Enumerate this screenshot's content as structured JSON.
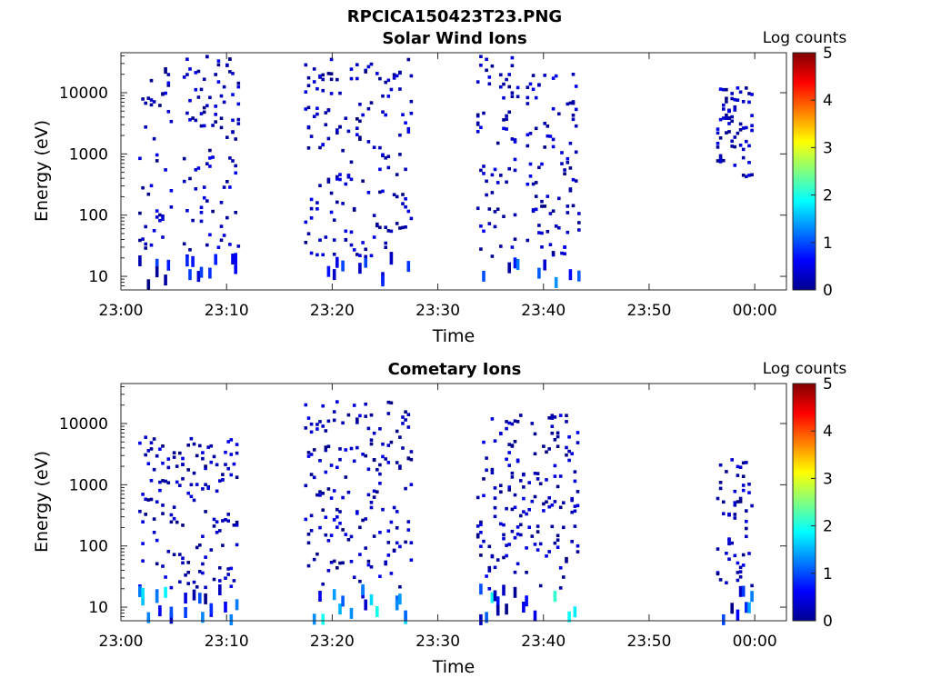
{
  "figure": {
    "title": "RPCICA150423T23.PNG"
  },
  "chart_data": [
    {
      "type": "heatmap",
      "title": "Solar Wind Ions",
      "xlabel": "Time",
      "ylabel": "Energy (eV)",
      "x_tick_labels": [
        "23:00",
        "23:10",
        "23:20",
        "23:30",
        "23:40",
        "23:50",
        "00:00"
      ],
      "x_ticks_min": [
        0,
        10,
        20,
        30,
        40,
        50,
        60
      ],
      "x_range_min": [
        0,
        63
      ],
      "y_scale": "log",
      "y_tick_labels": [
        "10",
        "100",
        "1000",
        "10000"
      ],
      "y_ticks": [
        10,
        100,
        1000,
        10000
      ],
      "y_range": [
        6,
        45000
      ],
      "colorbar": {
        "label": "Log counts",
        "range": [
          0,
          5
        ],
        "tick_labels": [
          "0",
          "1",
          "2",
          "3",
          "4",
          "5"
        ],
        "colormap": "jet"
      },
      "bursts": [
        {
          "t0": 1.8,
          "t1": 5.0,
          "emin": 6,
          "emax": 30000,
          "log_counts_max": 1.0
        },
        {
          "t0": 6.0,
          "t1": 11.2,
          "emin": 6,
          "emax": 40000,
          "log_counts_max": 1.0
        },
        {
          "t0": 17.5,
          "t1": 27.5,
          "emin": 6,
          "emax": 35000,
          "log_counts_max": 1.0
        },
        {
          "t0": 33.8,
          "t1": 37.8,
          "emin": 6,
          "emax": 40000,
          "log_counts_max": 1.5
        },
        {
          "t0": 38.5,
          "t1": 43.5,
          "emin": 6,
          "emax": 20000,
          "log_counts_max": 1.8
        },
        {
          "t0": 56.5,
          "t1": 59.8,
          "emin": 400,
          "emax": 12000,
          "log_counts_max": 0.6
        }
      ]
    },
    {
      "type": "heatmap",
      "title": "Cometary Ions",
      "xlabel": "Time",
      "ylabel": "Energy (eV)",
      "x_tick_labels": [
        "23:00",
        "23:10",
        "23:20",
        "23:30",
        "23:40",
        "23:50",
        "00:00"
      ],
      "x_ticks_min": [
        0,
        10,
        20,
        30,
        40,
        50,
        60
      ],
      "x_range_min": [
        0,
        63
      ],
      "y_scale": "log",
      "y_tick_labels": [
        "10",
        "100",
        "1000",
        "10000"
      ],
      "y_ticks": [
        10,
        100,
        1000,
        10000
      ],
      "y_range": [
        6,
        45000
      ],
      "colorbar": {
        "label": "Log counts",
        "range": [
          0,
          5
        ],
        "tick_labels": [
          "0",
          "1",
          "2",
          "3",
          "4",
          "5"
        ],
        "colormap": "jet"
      },
      "bursts": [
        {
          "t0": 1.8,
          "t1": 11.2,
          "emin": 6,
          "emax": 6000,
          "log_counts_max": 2.0
        },
        {
          "t0": 17.5,
          "t1": 27.5,
          "emin": 6,
          "emax": 28000,
          "log_counts_max": 2.0
        },
        {
          "t0": 33.8,
          "t1": 43.5,
          "emin": 6,
          "emax": 14000,
          "log_counts_max": 2.2
        },
        {
          "t0": 56.5,
          "t1": 59.8,
          "emin": 6,
          "emax": 2600,
          "log_counts_max": 1.6
        }
      ]
    }
  ]
}
